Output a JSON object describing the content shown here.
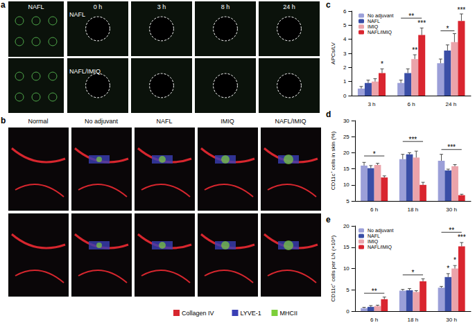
{
  "images": [
    {
      "panel": "a",
      "labels": [
        "NAFL"
      ],
      "timepoints": [
        "0 h",
        "3 h",
        "8 h",
        "24 h"
      ],
      "rows": [
        "NAFL",
        "NAFL/IMIQ"
      ]
    },
    {
      "panel": "b",
      "columns": [
        "Normal",
        "No adjuvant",
        "NAFL",
        "IMIQ",
        "NAFL/IMIQ"
      ],
      "stains": [
        {
          "name": "Collagen IV",
          "color": "#d7262e"
        },
        {
          "name": "LYVE-1",
          "color": "#3a3fb5"
        },
        {
          "name": "MHCII",
          "color": "#7ccf3a"
        }
      ]
    }
  ],
  "chart_data": [
    {
      "panel": "c",
      "type": "bar",
      "ylabel": "APCs/LV",
      "categories": [
        "3 h",
        "6 h",
        "24 h"
      ],
      "ylim": [
        0,
        6
      ],
      "yticks": [
        0,
        1,
        2,
        3,
        4,
        5,
        6
      ],
      "grid": false,
      "legend": "top-left",
      "series": [
        {
          "name": "No adjuvant",
          "color": "#9b9fd8",
          "values": [
            0.5,
            0.9,
            2.3
          ],
          "errors": [
            0.15,
            0.2,
            0.3
          ]
        },
        {
          "name": "NAFL",
          "color": "#3a4ea6",
          "values": [
            0.9,
            1.6,
            3.2
          ],
          "errors": [
            0.2,
            0.3,
            0.4
          ]
        },
        {
          "name": "IMIQ",
          "color": "#eba3aa",
          "values": [
            1.0,
            2.6,
            3.8
          ],
          "errors": [
            0.2,
            0.3,
            0.6
          ]
        },
        {
          "name": "NAFL/IMIQ",
          "color": "#d9252f",
          "values": [
            1.6,
            4.3,
            5.3
          ],
          "errors": [
            0.3,
            0.5,
            0.5
          ]
        }
      ],
      "annotations": [
        {
          "text": "*",
          "category": "3 h",
          "from": "NAFL/IMIQ",
          "to": "NAFL/IMIQ",
          "value": 2.0
        },
        {
          "text": "**",
          "category": "6 h",
          "from": "IMIQ",
          "to": "IMIQ",
          "value": 3.0
        },
        {
          "text": "***",
          "category": "6 h",
          "from": "NAFL/IMIQ",
          "to": "NAFL/IMIQ",
          "value": 4.9
        },
        {
          "text": "**",
          "category": "6 h",
          "from": "No adjuvant",
          "to": "NAFL/IMIQ",
          "value": 5.5
        },
        {
          "text": "*",
          "category": "24 h",
          "from": "No adjuvant",
          "to": "IMIQ",
          "value": 4.6
        },
        {
          "text": "***",
          "category": "24 h",
          "from": "NAFL/IMIQ",
          "to": "NAFL/IMIQ",
          "value": 5.85
        }
      ]
    },
    {
      "panel": "d",
      "type": "bar",
      "ylabel": "CD11c⁺ cells in skin (%)",
      "categories": [
        "6 h",
        "18 h",
        "30 h"
      ],
      "ylim": [
        5,
        30
      ],
      "yticks": [
        5,
        10,
        15,
        20,
        25,
        30
      ],
      "grid": false,
      "series": [
        {
          "name": "No adjuvant",
          "color": "#9b9fd8",
          "values": [
            16,
            18,
            17.5
          ],
          "errors": [
            1,
            1.5,
            2
          ]
        },
        {
          "name": "NAFL",
          "color": "#3a4ea6",
          "values": [
            15.2,
            19.5,
            14.5
          ],
          "errors": [
            0.8,
            0.5,
            0.4
          ]
        },
        {
          "name": "IMIQ",
          "color": "#eba3aa",
          "values": [
            16.2,
            18.5,
            15.8
          ],
          "errors": [
            0.5,
            2,
            0.5
          ]
        },
        {
          "name": "NAFL/IMIQ",
          "color": "#d9252f",
          "values": [
            12.3,
            10,
            6.8
          ],
          "errors": [
            0.5,
            0.8,
            0.3
          ]
        }
      ],
      "annotations": [
        {
          "text": "*",
          "category": "6 h",
          "from": "No adjuvant",
          "to": "NAFL/IMIQ",
          "value": 19
        },
        {
          "text": "***",
          "category": "18 h",
          "from": "No adjuvant",
          "to": "NAFL/IMIQ",
          "value": 23.5
        },
        {
          "text": "***",
          "category": "30 h",
          "from": "No adjuvant",
          "to": "NAFL/IMIQ",
          "value": 21
        }
      ]
    },
    {
      "panel": "e",
      "type": "bar",
      "ylabel": "CD11c⁺ cells per LN (×10⁴)",
      "categories": [
        "6 h",
        "18 h",
        "30 h"
      ],
      "ylim": [
        0,
        20
      ],
      "yticks": [
        0,
        5,
        10,
        15,
        20
      ],
      "grid": false,
      "legend": "top-left",
      "series": [
        {
          "name": "No adjuvant",
          "color": "#9b9fd8",
          "values": [
            0.7,
            4.8,
            5.5
          ],
          "errors": [
            0.2,
            0.3,
            0.3
          ]
        },
        {
          "name": "NAFL",
          "color": "#3a4ea6",
          "values": [
            1.0,
            4.9,
            8.0
          ],
          "errors": [
            0.3,
            0.4,
            0.8
          ]
        },
        {
          "name": "IMIQ",
          "color": "#eba3aa",
          "values": [
            1.2,
            4.5,
            10.0
          ],
          "errors": [
            0.2,
            0.3,
            0.7
          ]
        },
        {
          "name": "NAFL/IMIQ",
          "color": "#d9252f",
          "values": [
            2.8,
            7.0,
            15.2
          ],
          "errors": [
            0.5,
            0.6,
            0.9
          ]
        }
      ],
      "annotations": [
        {
          "text": "**",
          "category": "6 h",
          "from": "No adjuvant",
          "to": "NAFL/IMIQ",
          "value": 4.2
        },
        {
          "text": "*",
          "category": "18 h",
          "from": "No adjuvant",
          "to": "NAFL/IMIQ",
          "value": 8.5
        },
        {
          "text": "*",
          "category": "30 h",
          "from": "NAFL",
          "to": "NAFL",
          "value": 9.2
        },
        {
          "text": "*",
          "category": "30 h",
          "from": "IMIQ",
          "to": "IMIQ",
          "value": 11.2
        },
        {
          "text": "***",
          "category": "30 h",
          "from": "NAFL/IMIQ",
          "to": "NAFL/IMIQ",
          "value": 16.5
        },
        {
          "text": "**",
          "category": "30 h",
          "from": "No adjuvant",
          "to": "NAFL/IMIQ",
          "value": 18.5
        }
      ]
    }
  ]
}
